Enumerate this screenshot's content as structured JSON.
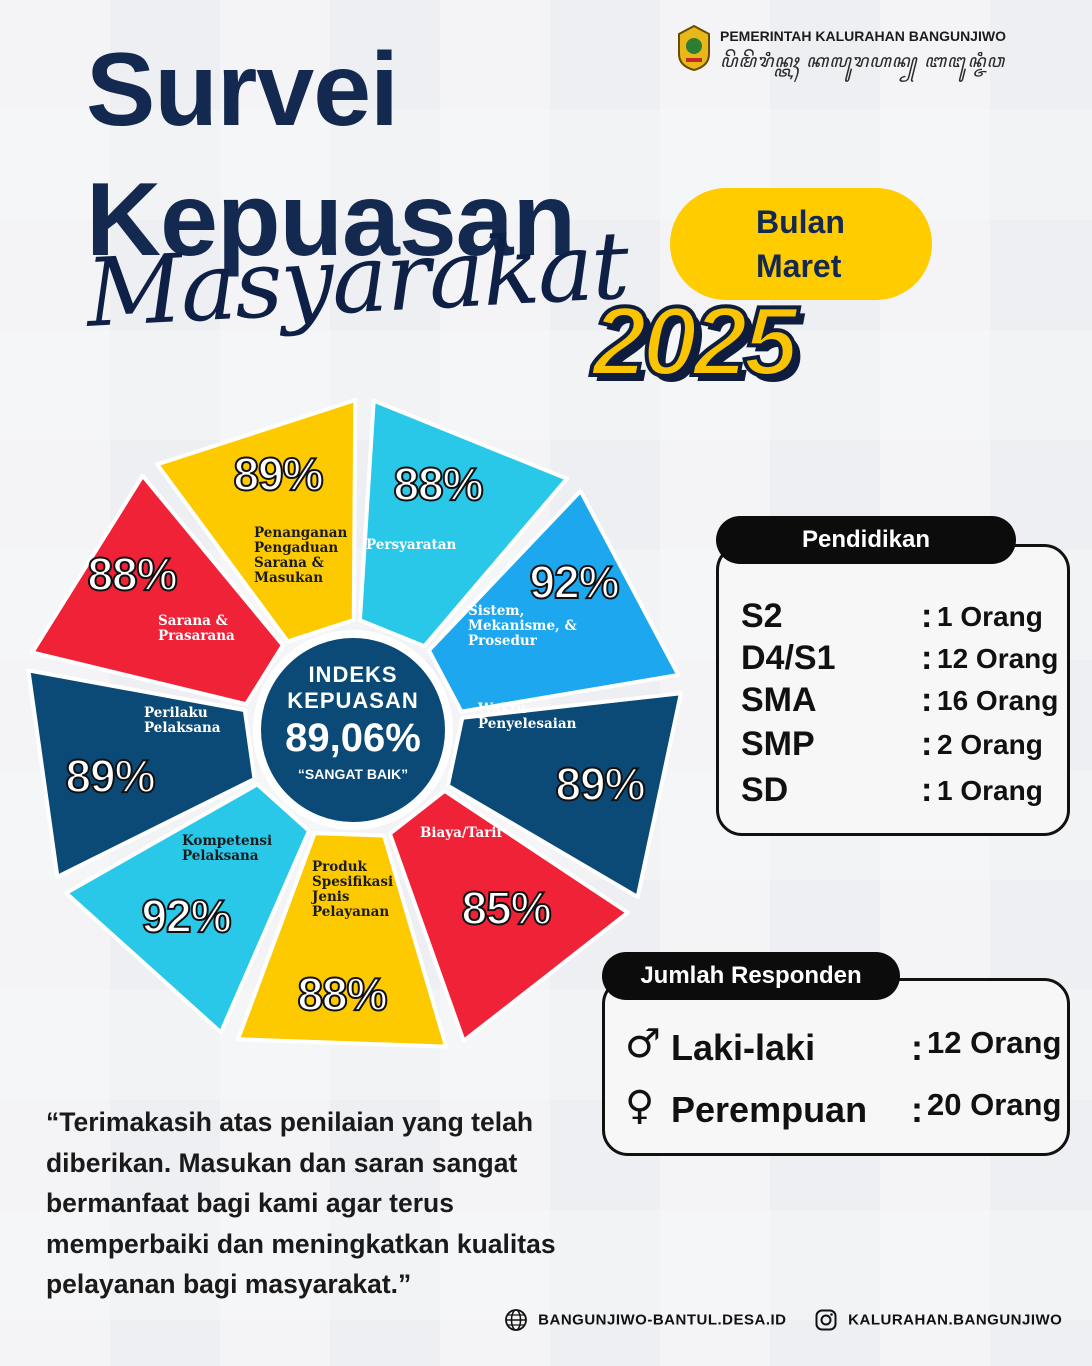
{
  "header": {
    "government_name": "PEMERINTAH KALURAHAN BANGUNJIWO",
    "javanese_script": "ꦥꦼꦩꦼꦫꦶꦤ꧀ꦠꦃ ꦏꦭꦸꦫꦲꦤ꧀ ꦧꦔꦸꦤ꧀ꦗꦶꦮ"
  },
  "title": {
    "line1": "Survei",
    "line2": "Kepuasan",
    "line3": "Masyarakat",
    "year": "2025",
    "month_line1": "Bulan",
    "month_line2": "Maret"
  },
  "wheel": {
    "center": {
      "line1": "INDEKS",
      "line2": "KEPUASAN",
      "value": "89,06%",
      "rating": "“SANGAT BAIK”"
    },
    "segments": [
      {
        "label": "Persyaratan",
        "percent": "88%",
        "value": 88,
        "color": "#29c8e8"
      },
      {
        "label": "Sistem,\nMekanisme, &\nProsedur",
        "percent": "92%",
        "value": 92,
        "color": "#1da7ee"
      },
      {
        "label": "Waktu\nPenyelesaian",
        "percent": "89%",
        "value": 89,
        "color": "#0b4a76"
      },
      {
        "label": "Biaya/Tarif",
        "percent": "85%",
        "value": 85,
        "color": "#ef2238"
      },
      {
        "label": "Produk\nSpesifikasi\nJenis\nPelayanan",
        "percent": "88%",
        "value": 88,
        "color": "#fdca00"
      },
      {
        "label": "Kompetensi\nPelaksana",
        "percent": "92%",
        "value": 92,
        "color": "#29c8e8"
      },
      {
        "label": "Perilaku\nPelaksana",
        "percent": "89%",
        "value": 89,
        "color": "#0b4a76"
      },
      {
        "label": "Sarana &\nPrasarana",
        "percent": "88%",
        "value": 88,
        "color": "#ef2238"
      },
      {
        "label": "Penanganan\nPengaduan\nSarana &\nMasukan",
        "percent": "89%",
        "value": 89,
        "color": "#fdca00"
      }
    ]
  },
  "pendidikan": {
    "title": "Pendidikan",
    "rows": [
      {
        "level": "S2",
        "count": "1 Orang"
      },
      {
        "level": "D4/S1",
        "count": "12 Orang"
      },
      {
        "level": "SMA",
        "count": "16 Orang"
      },
      {
        "level": "SMP",
        "count": "2 Orang"
      },
      {
        "level": "SD",
        "count": "1 Orang"
      }
    ]
  },
  "responden": {
    "title": "Jumlah Responden",
    "rows": [
      {
        "symbol": "♂",
        "label": "Laki-laki",
        "count": "12 Orang"
      },
      {
        "symbol": "♀",
        "label": "Perempuan",
        "count": "20 Orang"
      }
    ]
  },
  "quote": "“Terimakasih atas penilaian yang telah diberikan. Masukan dan saran sangat bermanfaat bagi kami agar terus memperbaiki dan meningkatkan kualitas pelayanan bagi masyarakat.”",
  "footer": {
    "website": "BANGUNJIWO-BANTUL.DESA.ID",
    "instagram": "KALURAHAN.BANGUNJIWO"
  },
  "colors": {
    "navy": "#14294f",
    "yellow": "#ffcc00",
    "cyan": "#29c8e8",
    "blue": "#1da7ee",
    "dark_blue": "#0b4a76",
    "red": "#ef2238"
  }
}
